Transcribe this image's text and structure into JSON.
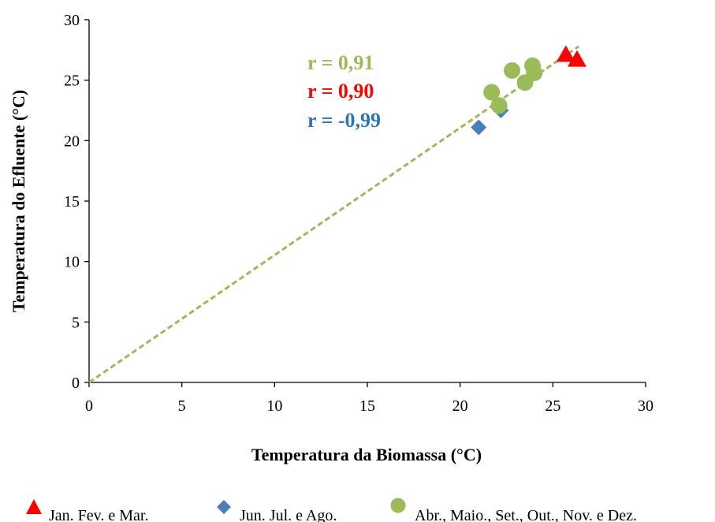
{
  "chart_data": {
    "type": "scatter",
    "title": "",
    "xlabel": "Temperatura da Biomassa (°C)",
    "ylabel": "Temperatura do Efluente (°C)",
    "xlim": [
      0,
      30
    ],
    "ylim": [
      0,
      30
    ],
    "xticks": [
      0,
      5,
      10,
      15,
      20,
      25,
      30
    ],
    "yticks": [
      0,
      5,
      10,
      15,
      20,
      25,
      30
    ],
    "grid": false,
    "legend_position": "bottom",
    "series": [
      {
        "name": "Jan. Fev. e Mar.",
        "marker": "triangle",
        "color": "#ff0000",
        "points": [
          [
            25.7,
            27.1
          ],
          [
            26.3,
            26.7
          ]
        ]
      },
      {
        "name": "Jun. Jul. e Ago.",
        "marker": "diamond",
        "color": "#4a7ebb",
        "points": [
          [
            21.0,
            21.1
          ],
          [
            22.2,
            22.5
          ]
        ]
      },
      {
        "name": "Abr., Maio., Set., Out., Nov. e Dez.",
        "marker": "circle",
        "color": "#9bbb59",
        "points": [
          [
            21.7,
            24.0
          ],
          [
            22.8,
            25.8
          ],
          [
            23.9,
            26.2
          ],
          [
            23.5,
            24.8
          ],
          [
            22.1,
            22.9
          ],
          [
            24.0,
            25.6
          ]
        ]
      }
    ],
    "trendline": {
      "color": "#9bbb59",
      "style": "dashed",
      "from": [
        0,
        0
      ],
      "to": [
        26.4,
        27.8
      ]
    },
    "annotations": [
      {
        "text": "r = 0,91",
        "color": "#9bbb59"
      },
      {
        "text": "r = 0,90",
        "color": "#ff0000"
      },
      {
        "text": "r = -0,99",
        "color": "#2e75b6"
      }
    ]
  }
}
